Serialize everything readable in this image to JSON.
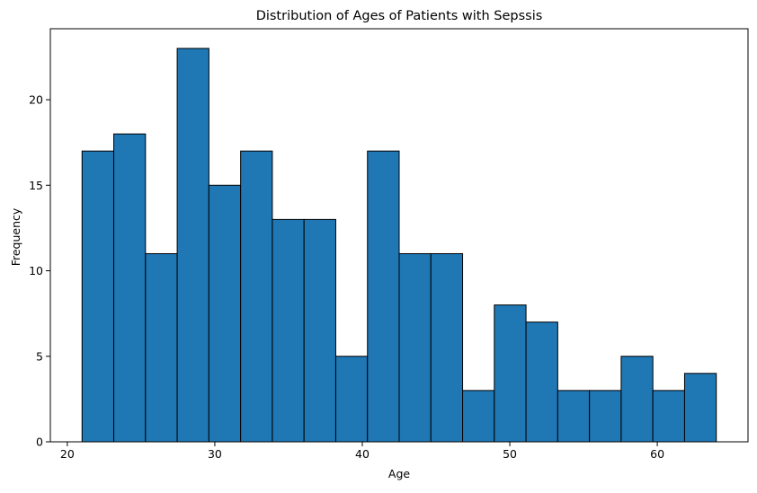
{
  "chart_data": {
    "type": "bar",
    "subtype": "histogram",
    "title": "Distribution of Ages of Patients with Sepssis",
    "xlabel": "Age",
    "ylabel": "Frequency",
    "bin_start": 21,
    "bin_end": 64,
    "bins": 20,
    "values": [
      17,
      18,
      11,
      23,
      15,
      17,
      13,
      13,
      5,
      17,
      11,
      11,
      3,
      8,
      7,
      3,
      3,
      5,
      3,
      4
    ],
    "xlim": [
      18.85,
      66.15
    ],
    "ylim": [
      0,
      24.15
    ],
    "xticks": [
      20,
      30,
      40,
      50,
      60
    ],
    "yticks": [
      0,
      5,
      10,
      15,
      20
    ],
    "grid": false,
    "colors": {
      "bar_fill": "#1f77b4",
      "bar_edge": "#000000",
      "axes": "#000000"
    }
  }
}
